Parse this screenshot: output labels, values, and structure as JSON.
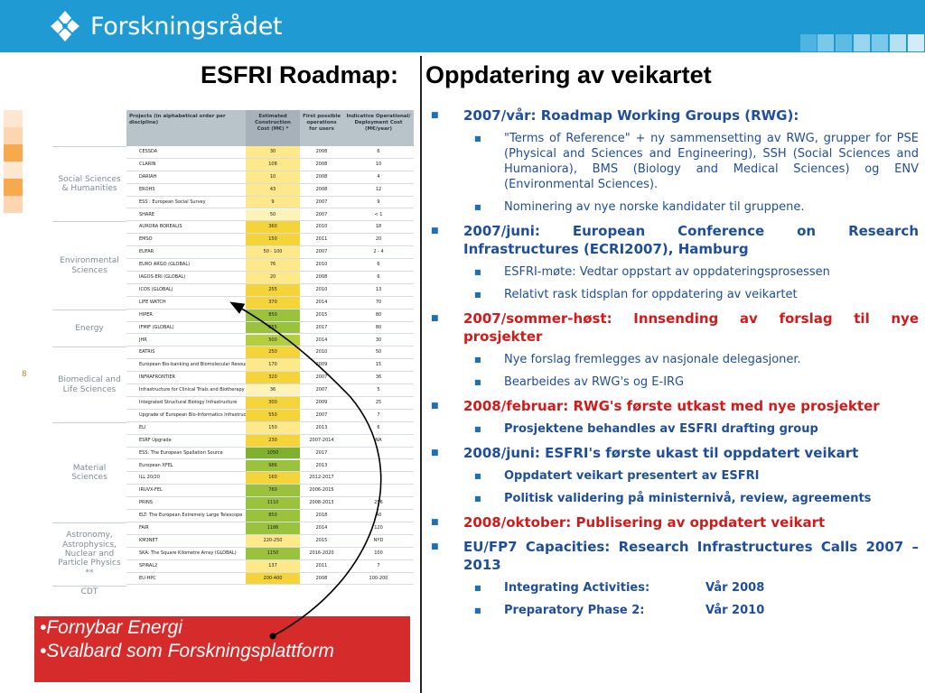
{
  "header": {
    "brand": "Forskningsrådet",
    "accent": "#1f9ad2"
  },
  "title": {
    "left": "ESFRI Roadmap:",
    "right": "Oppdatering av veikartet"
  },
  "slide_number": "8",
  "table": {
    "headers": [
      "Projects (in alphabetical order per discipline)",
      "Estimated Construction Cost (M€) *",
      "First possible operations for users",
      "Indicative Operational/ Deployment Cost (M€/year)"
    ],
    "groups": [
      {
        "label": "Social Sciences & Humanities",
        "rows": 6
      },
      {
        "label": "Environmental Sciences",
        "rows": 7
      },
      {
        "label": "Energy",
        "rows": 3
      },
      {
        "label": "Biomedical and Life Sciences",
        "rows": 6
      },
      {
        "label": "Material Sciences",
        "rows": 8
      },
      {
        "label": "Astronomy, Astrophysics, Nuclear and Particle Physics **",
        "rows": 5
      },
      {
        "label": "CDT",
        "rows": 1
      }
    ],
    "rows": [
      [
        "CESSDA",
        "30",
        "2008",
        "6",
        "#fde98a"
      ],
      [
        "CLARIN",
        "108",
        "2008",
        "10",
        "#fde98a"
      ],
      [
        "DARIAH",
        "10",
        "2008",
        "4",
        "#fde98a"
      ],
      [
        "EROHS",
        "43",
        "2008",
        "12",
        "#fde98a"
      ],
      [
        "ESS : European Social Survey",
        "9",
        "2007",
        "9",
        "#fde98a"
      ],
      [
        "SHARE",
        "50",
        "2007",
        "< 1",
        "#fdf2b8"
      ],
      [
        "AURORA BOREALIS",
        "360",
        "2010",
        "18",
        "#f5d43a"
      ],
      [
        "EMSO",
        "150",
        "2011",
        "20",
        "#f5d43a"
      ],
      [
        "EUFAR",
        "50 - 100",
        "2007",
        "2 - 4",
        "#fde98a"
      ],
      [
        "EURO ARGO (GLOBAL)",
        "76",
        "2010",
        "6",
        "#fde98a"
      ],
      [
        "IAGOS-ERI (GLOBAL)",
        "20",
        "2008",
        "6",
        "#fde98a"
      ],
      [
        "ICOS (GLOBAL)",
        "255",
        "2010",
        "13",
        "#f5d43a"
      ],
      [
        "LIFE WATCH",
        "370",
        "2014",
        "70",
        "#f5d43a"
      ],
      [
        "HIPER",
        "850",
        "2015",
        "80",
        "#9bc23c"
      ],
      [
        "IFMIF (GLOBAL)",
        "855",
        "2017",
        "80",
        "#9bc23c"
      ],
      [
        "JHR",
        "500",
        "2014",
        "30",
        "#b3cf3c"
      ],
      [
        "EATRIS",
        "250",
        "2010",
        "50",
        "#f5d43a"
      ],
      [
        "European Bio-banking and Biomolecular Resources",
        "170",
        "2009",
        "15",
        "#fde98a"
      ],
      [
        "INFRAFRONTIER",
        "320",
        "2007",
        "36",
        "#f5d43a"
      ],
      [
        "Infrastructure for Clinical Trials and Biotherapy Facilities",
        "36",
        "2007",
        "5",
        "#fdf2b8"
      ],
      [
        "Integrated Structural Biology Infrastructure",
        "300",
        "2009",
        "25",
        "#f5d43a"
      ],
      [
        "Upgrade of European Bio-Informatics Infrastructure",
        "550",
        "2007",
        "7",
        "#f5d43a"
      ],
      [
        "ELI",
        "150",
        "2013",
        "6",
        "#fde98a"
      ],
      [
        "ESRF Upgrade",
        "230",
        "2007-2014",
        "NA",
        "#f5d43a"
      ],
      [
        "ESS: The European Spallation Source",
        "1050",
        "2017",
        "",
        "#7fb12e"
      ],
      [
        "European XFEL",
        "986",
        "2013",
        "",
        "#9bc23c"
      ],
      [
        "ILL 20/20",
        "160",
        "2012-2017",
        "",
        "#f5d43a"
      ],
      [
        "IRUVX-FEL",
        "760",
        "2006-2015",
        "",
        "#9bc23c"
      ],
      [
        "PRINS",
        "1110",
        "2008-2013",
        "256",
        "#9bc23c"
      ],
      [
        "ELT: The European Extremely Large Telescope",
        "850",
        "2018",
        "40",
        "#9bc23c"
      ],
      [
        "FAIR",
        "1186",
        "2014",
        "120",
        "#9bc23c"
      ],
      [
        "KM3NET",
        "220-250",
        "2015",
        "NYD",
        "#fde98a"
      ],
      [
        "SKA: The Square Kilometre Array (GLOBAL)",
        "1150",
        "2016-2020",
        "100",
        "#9bc23c"
      ],
      [
        "SPIRAL2",
        "137",
        "2011",
        "7",
        "#fde98a"
      ],
      [
        "EU-HPC",
        "200-400",
        "2008",
        "100-200",
        "#f5d43a"
      ]
    ]
  },
  "redbox": {
    "items": [
      "•Fornybar Energi",
      "•Svalbard som Forskningsplattform"
    ]
  },
  "content": [
    {
      "level": 1,
      "color": "blue",
      "text": "2007/vår: Roadmap Working Groups (RWG):"
    },
    {
      "level": 2,
      "bold": false,
      "text": "\"Terms of Reference\" + ny sammensetting av RWG, grupper for PSE (Physical and Sciences and Engineering), SSH (Social Sciences and Humaniora), BMS (Biology and Medical Sciences) og ENV (Environmental Sciences)."
    },
    {
      "level": 2,
      "bold": false,
      "text": "Nominering av nye norske kandidater til gruppene."
    },
    {
      "level": 1,
      "color": "blue",
      "text": "2007/juni: European Conference on Research Infrastructures (ECRI2007), Hamburg"
    },
    {
      "level": 2,
      "bold": false,
      "text": "ESFRI-møte: Vedtar oppstart av oppdateringsprosessen"
    },
    {
      "level": 2,
      "bold": false,
      "text": "Relativt rask tidsplan for oppdatering av veikartet"
    },
    {
      "level": 1,
      "color": "red",
      "text": "2007/sommer-høst: Innsending av forslag til nye prosjekter"
    },
    {
      "level": 2,
      "bold": false,
      "text": "Nye forslag fremlegges av nasjonale delegasjoner."
    },
    {
      "level": 2,
      "bold": false,
      "text": "Bearbeides av RWG's og E-IRG"
    },
    {
      "level": 1,
      "color": "red",
      "text": "2008/februar: RWG's første utkast med nye prosjekter"
    },
    {
      "level": 2,
      "bold": true,
      "text": "Prosjektene behandles av ESFRI drafting group"
    },
    {
      "level": 1,
      "color": "blue",
      "text": "2008/juni: ESFRI's første ukast til oppdatert veikart"
    },
    {
      "level": 2,
      "bold": true,
      "text": "Oppdatert veikart presentert av ESFRI"
    },
    {
      "level": 2,
      "bold": true,
      "text": "Politisk validering på ministernivå, review, agreements"
    },
    {
      "level": 1,
      "color": "red",
      "text": "2008/oktober: Publisering av oppdatert veikart"
    },
    {
      "level": 1,
      "color": "blue",
      "text": "EU/FP7 Capacities: Research Infrastructures Calls 2007 – 2013"
    },
    {
      "level": 2,
      "bold": true,
      "text": "Integrating Activities:",
      "text2": "Vår 2008"
    },
    {
      "level": 2,
      "bold": true,
      "text": "Preparatory Phase 2:",
      "text2": "Vår 2010"
    }
  ]
}
